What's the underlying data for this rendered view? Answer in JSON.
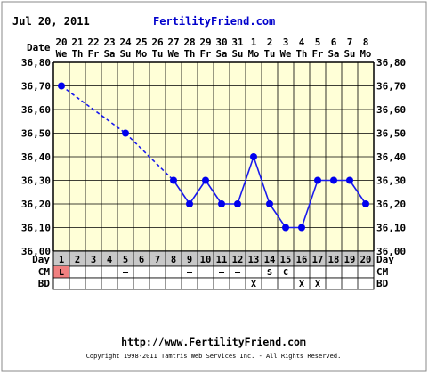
{
  "header": {
    "date": "Jul 20, 2011",
    "site": "FertilityFriend.com"
  },
  "footer": {
    "url": "http://www.FertilityFriend.com",
    "copyright": "Copyright 1998-2011 Tamtris Web Services Inc. - All Rights Reserved."
  },
  "colors": {
    "plot_bg": "#ffffd7",
    "grid": "#000000",
    "line": "#1a1aee",
    "point": "#0000ee",
    "day_row_bg": "#c8c8c8",
    "period_cell": "#f08080",
    "outer_border": "#888888"
  },
  "chart_data": {
    "type": "line",
    "ylim": [
      36.0,
      36.8
    ],
    "ystep": 0.1,
    "yticks": [
      "36,00",
      "36,10",
      "36,20",
      "36,30",
      "36,40",
      "36,50",
      "36,60",
      "36,70",
      "36,80"
    ],
    "date_label": "Date",
    "day_label": "Day",
    "dates": [
      "20",
      "21",
      "22",
      "23",
      "24",
      "25",
      "26",
      "27",
      "28",
      "29",
      "30",
      "31",
      "1",
      "2",
      "3",
      "4",
      "5",
      "6",
      "7",
      "8"
    ],
    "dows": [
      "We",
      "Th",
      "Fr",
      "Sa",
      "Su",
      "Mo",
      "Tu",
      "We",
      "Th",
      "Fr",
      "Sa",
      "Su",
      "Mo",
      "Tu",
      "We",
      "Th",
      "Fr",
      "Sa",
      "Su",
      "Mo"
    ],
    "days": [
      "1",
      "2",
      "3",
      "4",
      "5",
      "6",
      "7",
      "8",
      "9",
      "10",
      "11",
      "12",
      "13",
      "14",
      "15",
      "16",
      "17",
      "18",
      "19",
      "20"
    ],
    "series": [
      {
        "values": [
          36.7,
          null,
          null,
          null,
          36.5,
          null,
          null,
          36.3,
          36.2,
          36.3,
          36.2,
          36.2,
          36.4,
          36.2,
          36.1,
          36.1,
          36.3,
          36.3,
          36.3,
          36.2
        ],
        "dashed_until_day": 8
      }
    ],
    "rows": [
      {
        "label": "CM",
        "values": [
          "L",
          "",
          "",
          "",
          "–",
          "",
          "",
          "",
          "–",
          "",
          "–",
          "–",
          "",
          "S",
          "C",
          "",
          "",
          "",
          "",
          ""
        ]
      },
      {
        "label": "BD",
        "values": [
          "",
          "",
          "",
          "",
          "",
          "",
          "",
          "",
          "",
          "",
          "",
          "",
          "X",
          "",
          "",
          "X",
          "X",
          "",
          "",
          ""
        ]
      }
    ],
    "grid": true
  }
}
